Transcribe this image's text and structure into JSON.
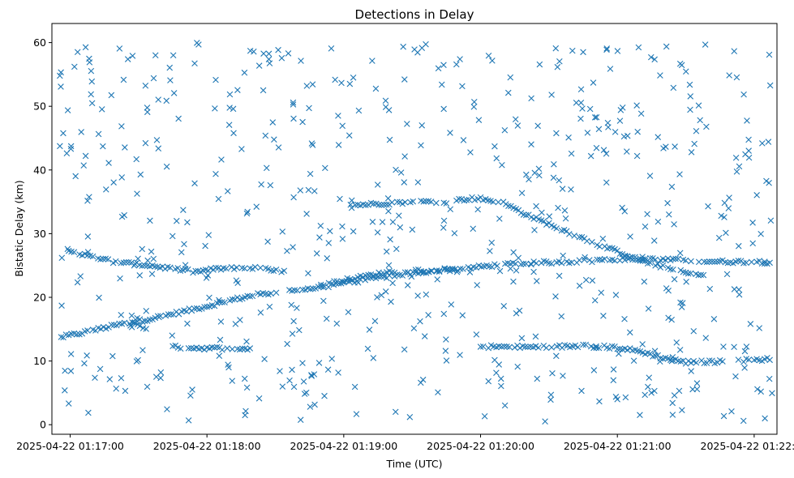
{
  "chart_data": {
    "type": "scatter",
    "title": "Detections in Delay",
    "xlabel": "Time (UTC)",
    "ylabel": "Bistatic Delay (km)",
    "x_tick_labels": [
      "2025-04-22 01:17:00",
      "2025-04-22 01:18:00",
      "2025-04-22 01:19:00",
      "2025-04-22 01:20:00",
      "2025-04-22 01:21:00",
      "2025-04-22 01:22:00"
    ],
    "y_ticks": [
      0,
      10,
      20,
      30,
      40,
      50,
      60
    ],
    "xlim": [
      "2025-04-22 01:16:52",
      "2025-04-22 01:22:10"
    ],
    "ylim": [
      -1.5,
      63
    ],
    "grid": false,
    "marker": "x",
    "color": "#1f77b4",
    "track_series": [
      {
        "points": [
          [
            "01:16:57",
            13.8
          ],
          [
            "01:17:10",
            14.8
          ],
          [
            "01:17:25",
            16.0
          ],
          [
            "01:17:35",
            16.6
          ],
          [
            "01:17:50",
            17.8
          ],
          [
            "01:18:00",
            18.6
          ],
          [
            "01:18:10",
            19.5
          ],
          [
            "01:18:20",
            20.3
          ],
          [
            "01:18:35",
            21.0
          ],
          [
            "01:18:50",
            21.6
          ],
          [
            "01:19:00",
            22.3
          ],
          [
            "01:19:20",
            23.3
          ],
          [
            "01:19:35",
            24.0
          ],
          [
            "01:19:50",
            24.4
          ],
          [
            "01:20:05",
            25.0
          ],
          [
            "01:20:20",
            25.3
          ],
          [
            "01:20:30",
            25.5
          ],
          [
            "01:20:40",
            25.6
          ],
          [
            "01:20:50",
            25.8
          ],
          [
            "01:21:00",
            26.0
          ],
          [
            "01:21:10",
            26.0
          ],
          [
            "01:21:20",
            25.9
          ],
          [
            "01:21:30",
            25.8
          ],
          [
            "01:21:45",
            25.6
          ],
          [
            "01:22:00",
            25.6
          ],
          [
            "01:22:08",
            25.5
          ]
        ]
      },
      {
        "points": [
          [
            "01:16:57",
            27.2
          ],
          [
            "01:17:10",
            26.4
          ],
          [
            "01:17:20",
            25.5
          ],
          [
            "01:17:35",
            25.0
          ],
          [
            "01:17:45",
            24.5
          ],
          [
            "01:17:55",
            24.0
          ],
          [
            "01:18:05",
            24.5
          ],
          [
            "01:18:20",
            24.6
          ],
          [
            "01:18:35",
            24.0
          ]
        ]
      },
      {
        "points": [
          [
            "01:17:45",
            12.2
          ],
          [
            "01:18:00",
            12.0
          ],
          [
            "01:18:10",
            12.0
          ],
          [
            "01:18:20",
            12.0
          ]
        ]
      },
      {
        "points": [
          [
            "01:19:05",
            34.5
          ],
          [
            "01:19:20",
            34.8
          ],
          [
            "01:19:35",
            35.0
          ],
          [
            "01:19:45",
            35.0
          ],
          [
            "01:19:55",
            35.5
          ],
          [
            "01:20:00",
            35.5
          ],
          [
            "01:20:10",
            34.8
          ],
          [
            "01:20:20",
            33.0
          ],
          [
            "01:20:30",
            31.5
          ],
          [
            "01:20:40",
            30.0
          ],
          [
            "01:20:50",
            28.5
          ],
          [
            "01:21:00",
            27.2
          ],
          [
            "01:21:10",
            25.8
          ],
          [
            "01:21:20",
            24.8
          ],
          [
            "01:21:30",
            23.8
          ],
          [
            "01:21:40",
            23.3
          ]
        ]
      },
      {
        "points": [
          [
            "01:20:00",
            12.3
          ],
          [
            "01:20:15",
            12.2
          ],
          [
            "01:20:30",
            12.2
          ],
          [
            "01:20:45",
            12.4
          ],
          [
            "01:21:00",
            12.1
          ],
          [
            "01:21:10",
            11.5
          ],
          [
            "01:21:20",
            10.5
          ],
          [
            "01:21:30",
            9.8
          ],
          [
            "01:21:45",
            9.9
          ],
          [
            "01:22:00",
            10.2
          ],
          [
            "01:22:08",
            10.3
          ]
        ]
      },
      {
        "points": [
          [
            "01:18:50",
            22.0
          ],
          [
            "01:19:05",
            23.0
          ],
          [
            "01:19:20",
            24.0
          ],
          [
            "01:19:35",
            24.2
          ],
          [
            "01:19:50",
            24.5
          ]
        ]
      }
    ],
    "noise_detection_count": 620,
    "noise_detection_range": {
      "x": [
        "01:16:55",
        "01:22:08"
      ],
      "y": [
        0.5,
        60
      ]
    }
  }
}
